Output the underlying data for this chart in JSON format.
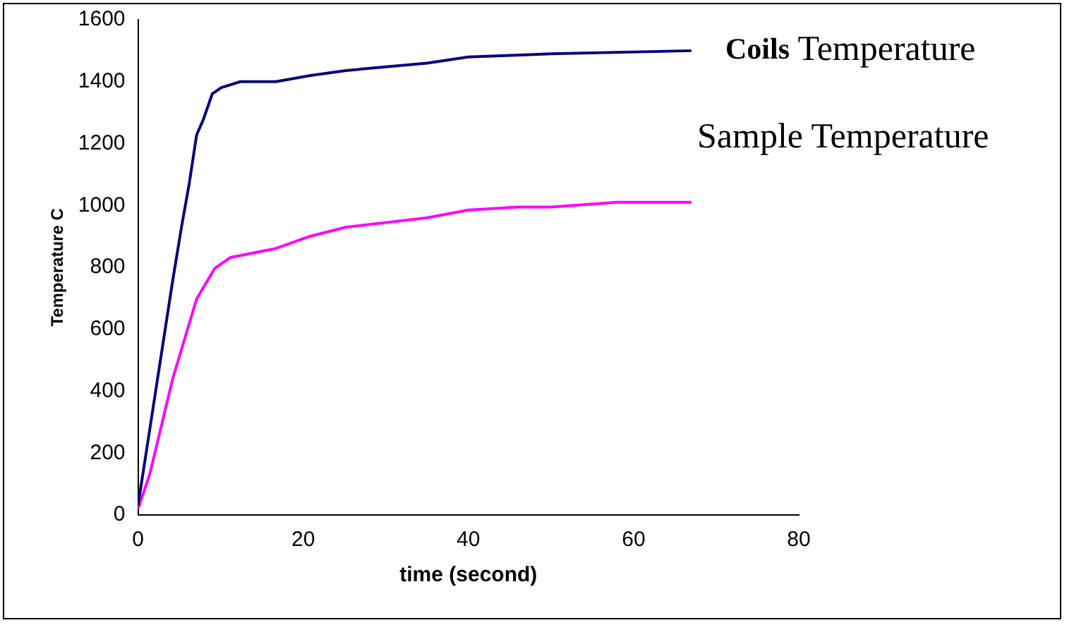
{
  "chart_data": {
    "type": "line",
    "xlabel": "time (second)",
    "ylabel": "Temperature C",
    "xlim": [
      0,
      80
    ],
    "xticks": [
      0,
      20,
      40,
      60,
      80
    ],
    "ylim": [
      0,
      1600
    ],
    "yticks": [
      0,
      200,
      400,
      600,
      800,
      1000,
      1200,
      1400,
      1600
    ],
    "grid": false,
    "legend": false,
    "marker": "none",
    "line_style": "solid",
    "series": [
      {
        "name": "Coils Temperature",
        "color": "#000080",
        "x": [
          0,
          2,
          4.2,
          5.3,
          6.2,
          7.1,
          7.9,
          9,
          10.1,
          12.4,
          16.7,
          20.9,
          25.2,
          35,
          40,
          50,
          67
        ],
        "values": [
          30,
          376,
          757,
          935,
          1070,
          1228,
          1277,
          1361,
          1381,
          1400,
          1400,
          1420,
          1436,
          1460,
          1480,
          1490,
          1500
        ]
      },
      {
        "name": "Sample Temperature",
        "color": "#ff00ff",
        "x": [
          0,
          1.4,
          4.2,
          7.1,
          9.3,
          11.2,
          16.7,
          20.9,
          25.2,
          35,
          40,
          46,
          50,
          58,
          67
        ],
        "values": [
          20,
          129,
          440,
          698,
          797,
          832,
          861,
          901,
          930,
          960,
          985,
          995,
          995,
          1010,
          1010
        ]
      }
    ]
  }
}
